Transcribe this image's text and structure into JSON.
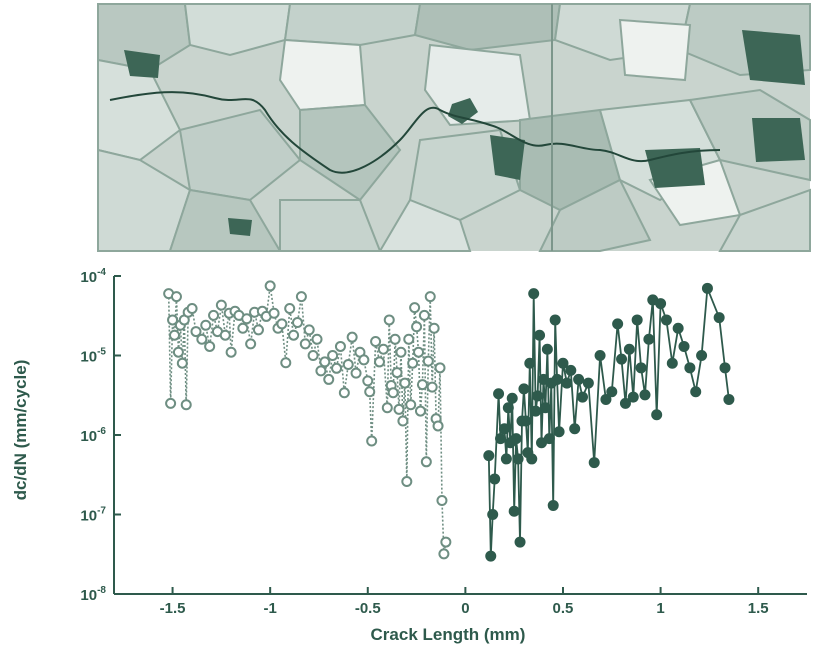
{
  "colors": {
    "accent": "#2e5a4c",
    "open_marker": "#6e8e82",
    "filled_marker": "#2e5a4c",
    "micrograph_bg": "#c9d4ce"
  },
  "chart_data": {
    "type": "scatter",
    "title": "",
    "xlabel": "Crack Length (mm)",
    "ylabel": "dc/dN  (mm/cycle)",
    "xlim": [
      -1.8,
      1.75
    ],
    "ylim": [
      1e-08,
      0.0001
    ],
    "yscale": "log",
    "grid": false,
    "x_ticks": [
      -1.5,
      -1,
      -0.5,
      0,
      0.5,
      1,
      1.5
    ],
    "x_tick_labels": [
      "-1.5",
      "-1",
      "-0.5",
      "0",
      "0.5",
      "1",
      "1.5"
    ],
    "y_ticks": [
      1e-08,
      1e-07,
      1e-06,
      1e-05,
      0.0001
    ],
    "y_tick_labels": [
      {
        "base": "10",
        "exp": "-8"
      },
      {
        "base": "10",
        "exp": "-7"
      },
      {
        "base": "10",
        "exp": "-6"
      },
      {
        "base": "10",
        "exp": "-5"
      },
      {
        "base": "10",
        "exp": "-4"
      }
    ],
    "series": [
      {
        "name": "",
        "marker": "open-circle",
        "line": "dotted",
        "x": [
          -1.52,
          -1.51,
          -1.5,
          -1.49,
          -1.48,
          -1.47,
          -1.46,
          -1.45,
          -1.44,
          -1.43,
          -1.42,
          -1.4,
          -1.38,
          -1.35,
          -1.33,
          -1.31,
          -1.29,
          -1.27,
          -1.25,
          -1.23,
          -1.21,
          -1.2,
          -1.18,
          -1.16,
          -1.14,
          -1.12,
          -1.1,
          -1.08,
          -1.06,
          -1.04,
          -1.02,
          -1.0,
          -0.98,
          -0.96,
          -0.94,
          -0.92,
          -0.9,
          -0.88,
          -0.86,
          -0.84,
          -0.82,
          -0.8,
          -0.78,
          -0.76,
          -0.74,
          -0.72,
          -0.7,
          -0.68,
          -0.66,
          -0.64,
          -0.62,
          -0.6,
          -0.58,
          -0.56,
          -0.54,
          -0.52,
          -0.5,
          -0.49,
          -0.48,
          -0.46,
          -0.44,
          -0.42,
          -0.4,
          -0.39,
          -0.38,
          -0.37,
          -0.36,
          -0.35,
          -0.34,
          -0.33,
          -0.32,
          -0.31,
          -0.3,
          -0.29,
          -0.28,
          -0.27,
          -0.26,
          -0.25,
          -0.24,
          -0.23,
          -0.22,
          -0.21,
          -0.2,
          -0.19,
          -0.18,
          -0.17,
          -0.16,
          -0.15,
          -0.14,
          -0.13,
          -0.12,
          -0.11,
          -0.1
        ],
        "y": [
          6e-05,
          2.5e-06,
          2.8e-05,
          1.8e-05,
          5.5e-05,
          1.1e-05,
          2.4e-05,
          8e-06,
          2.8e-05,
          2.4e-06,
          3.5e-05,
          3.9e-05,
          2e-05,
          1.6e-05,
          2.4e-05,
          1.3e-05,
          3.2e-05,
          2e-05,
          4.3e-05,
          1.8e-05,
          3.4e-05,
          1.1e-05,
          3.6e-05,
          3.2e-05,
          2.2e-05,
          2.9e-05,
          1.4e-05,
          3.5e-05,
          2.1e-05,
          3.6e-05,
          3.1e-05,
          7.5e-05,
          3.4e-05,
          2.2e-05,
          2.5e-05,
          8.1e-06,
          3.9e-05,
          1.8e-05,
          2.6e-05,
          5.5e-05,
          1.4e-05,
          2.1e-05,
          1e-05,
          1.6e-05,
          6.4e-06,
          8.3e-06,
          5e-06,
          1e-05,
          6.9e-06,
          1.3e-05,
          3.4e-06,
          7.7e-06,
          1.7e-05,
          6e-06,
          1.1e-05,
          8.8e-06,
          4.8e-06,
          3.5e-06,
          8.4e-07,
          1.5e-05,
          8.3e-06,
          1.2e-05,
          2.2e-06,
          2.8e-05,
          4.2e-06,
          3.4e-06,
          1.6e-05,
          6.1e-06,
          2.1e-06,
          1.1e-05,
          1.5e-06,
          4.5e-06,
          2.6e-07,
          1.6e-05,
          2.4e-06,
          8e-06,
          4e-05,
          2.3e-05,
          1.1e-05,
          2e-06,
          4.3e-06,
          3.2e-05,
          4.6e-07,
          8.5e-06,
          5.5e-05,
          4e-06,
          2.2e-05,
          1.6e-06,
          1.3e-06,
          7e-06,
          1.5e-07,
          3.2e-08,
          4.5e-08
        ]
      },
      {
        "name": "",
        "marker": "filled-circle",
        "line": "solid",
        "x": [
          0.12,
          0.13,
          0.14,
          0.15,
          0.17,
          0.18,
          0.2,
          0.21,
          0.22,
          0.23,
          0.24,
          0.25,
          0.26,
          0.27,
          0.28,
          0.29,
          0.3,
          0.31,
          0.32,
          0.33,
          0.34,
          0.35,
          0.36,
          0.37,
          0.38,
          0.39,
          0.4,
          0.41,
          0.42,
          0.43,
          0.44,
          0.45,
          0.46,
          0.47,
          0.48,
          0.5,
          0.52,
          0.54,
          0.56,
          0.58,
          0.6,
          0.63,
          0.66,
          0.69,
          0.72,
          0.75,
          0.78,
          0.8,
          0.82,
          0.84,
          0.86,
          0.88,
          0.9,
          0.92,
          0.94,
          0.96,
          0.98,
          1.0,
          1.03,
          1.06,
          1.09,
          1.12,
          1.15,
          1.18,
          1.21,
          1.24,
          1.3,
          1.33,
          1.35
        ],
        "y": [
          5.5e-07,
          3e-08,
          1e-07,
          2.8e-07,
          3.3e-06,
          9e-07,
          1.2e-06,
          5e-07,
          2.2e-06,
          8e-07,
          2.9e-06,
          1.1e-07,
          9e-07,
          5e-07,
          4.5e-08,
          1.5e-06,
          3.8e-06,
          1.5e-06,
          6e-07,
          8e-06,
          5e-07,
          6e-05,
          2e-06,
          3.1e-06,
          1.8e-05,
          8e-07,
          5e-06,
          2.2e-06,
          1.2e-05,
          9e-07,
          4.5e-06,
          1.3e-07,
          2.8e-05,
          5e-06,
          1.1e-06,
          8e-06,
          4.5e-06,
          6.5e-06,
          1.2e-06,
          5e-06,
          3e-06,
          4.5e-06,
          4.5e-07,
          1e-05,
          2.8e-06,
          3.5e-06,
          2.5e-05,
          9e-06,
          2.5e-06,
          1.2e-05,
          3e-06,
          2.8e-05,
          7e-06,
          3.2e-06,
          1.6e-05,
          5e-05,
          1.8e-06,
          4.5e-05,
          2.8e-05,
          8e-06,
          2.2e-05,
          1.3e-05,
          7e-06,
          3.5e-06,
          1e-05,
          7e-05,
          3e-05,
          7e-06,
          2.8e-06
        ]
      }
    ]
  }
}
